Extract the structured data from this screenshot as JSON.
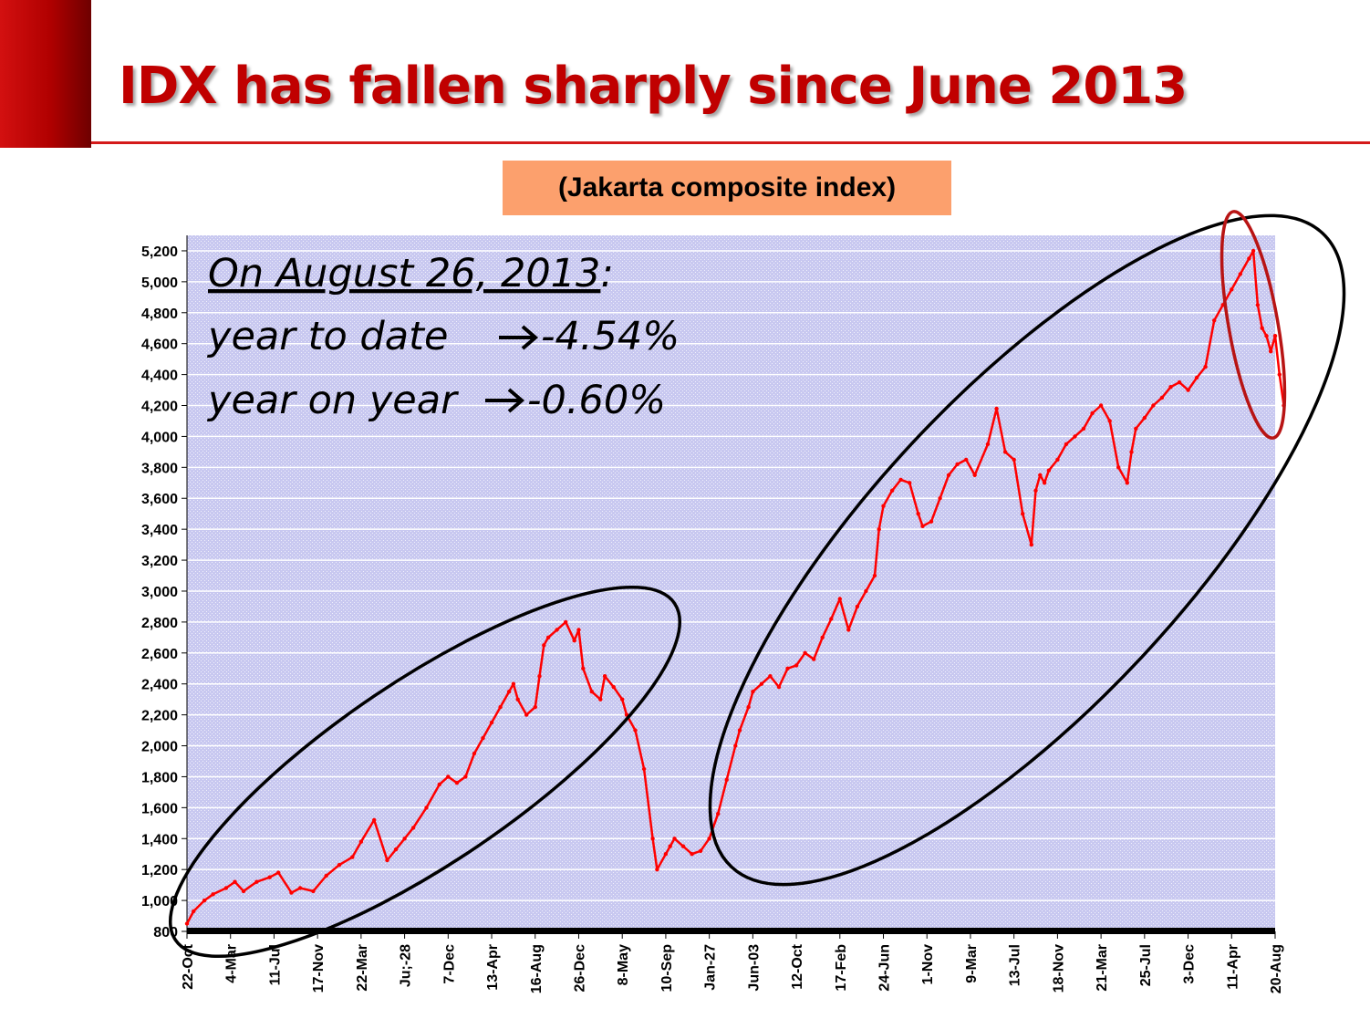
{
  "slide": {
    "title": "IDX has fallen sharply since June 2013",
    "subtitle": "(Jakarta composite index)",
    "accent_color": "#c00000"
  },
  "annotation": {
    "line1": "On August 26, 2013",
    "line1_suffix": ":",
    "line2_label": "year to date",
    "line2_value": "-4.54%",
    "line3_label": "year on year",
    "line3_value": "-0.60%",
    "arrow_icon": "right-arrow-icon"
  },
  "chart_data": {
    "type": "line",
    "title": "",
    "xlabel": "",
    "ylabel": "",
    "ylim": [
      800,
      5300
    ],
    "yticks": [
      800,
      1000,
      1200,
      1400,
      1600,
      1800,
      2000,
      2200,
      2400,
      2600,
      2800,
      3000,
      3200,
      3400,
      3600,
      3800,
      4000,
      4200,
      4400,
      4600,
      4800,
      5000,
      5200
    ],
    "ytick_labels": [
      "800",
      "1,000",
      "1,200",
      "1,400",
      "1,600",
      "1,800",
      "2,000",
      "2,200",
      "2,400",
      "2,600",
      "2,800",
      "3,000",
      "3,200",
      "3,400",
      "3,600",
      "3,800",
      "4,000",
      "4,200",
      "4,400",
      "4,600",
      "4,800",
      "5,000",
      "5,200"
    ],
    "xtick_labels": [
      "22-Oct",
      "4-Mar",
      "11-Jul",
      "17-Nov",
      "22-Mar",
      "Ju;-28",
      "7-Dec",
      "13-Apr",
      "16-Aug",
      "26-Dec",
      "8-May",
      "10-Sep",
      "Jan-27",
      "Jun-03",
      "12-Oct",
      "17-Feb",
      "24-Jun",
      "1-Nov",
      "9-Mar",
      "13-Jul",
      "18-Nov",
      "21-Mar",
      "25-Jul",
      "3-Dec",
      "11-Apr",
      "20-Aug"
    ],
    "grid": true,
    "background_color": "#c8c8f0",
    "line_color": "#ff0000",
    "series": [
      {
        "name": "",
        "x": [
          0.0,
          0.15,
          0.4,
          0.6,
          0.9,
          1.1,
          1.3,
          1.6,
          1.9,
          2.1,
          2.4,
          2.6,
          2.9,
          3.2,
          3.5,
          3.8,
          4.0,
          4.3,
          4.6,
          4.8,
          5.0,
          5.2,
          5.5,
          5.8,
          6.0,
          6.2,
          6.4,
          6.6,
          6.8,
          7.0,
          7.2,
          7.4,
          7.5,
          7.6,
          7.8,
          8.0,
          8.1,
          8.2,
          8.3,
          8.5,
          8.7,
          8.9,
          9.0,
          9.1,
          9.3,
          9.5,
          9.6,
          9.8,
          10.0,
          10.1,
          10.3,
          10.5,
          10.7,
          10.8,
          11.0,
          11.1,
          11.2,
          11.4,
          11.6,
          11.8,
          12.0,
          12.2,
          12.4,
          12.6,
          12.7,
          12.9,
          13.0,
          13.2,
          13.4,
          13.6,
          13.8,
          14.0,
          14.2,
          14.4,
          14.6,
          14.8,
          15.0,
          15.2,
          15.4,
          15.6,
          15.8,
          15.9,
          16.0,
          16.2,
          16.4,
          16.6,
          16.8,
          16.9,
          17.1,
          17.3,
          17.5,
          17.7,
          17.9,
          18.1,
          18.4,
          18.6,
          18.8,
          19.0,
          19.2,
          19.4,
          19.5,
          19.6,
          19.7,
          19.8,
          20.0,
          20.2,
          20.4,
          20.6,
          20.8,
          21.0,
          21.2,
          21.4,
          21.6,
          21.7,
          21.8,
          22.0,
          22.2,
          22.4,
          22.6,
          22.8,
          23.0,
          23.2,
          23.4,
          23.6,
          23.8,
          24.0,
          24.2,
          24.4,
          24.5,
          24.6,
          24.7,
          24.8,
          24.9,
          25.0,
          25.1,
          25.2
        ],
        "values": [
          850,
          930,
          1000,
          1040,
          1080,
          1120,
          1060,
          1120,
          1150,
          1180,
          1050,
          1080,
          1060,
          1160,
          1230,
          1280,
          1380,
          1520,
          1260,
          1330,
          1400,
          1470,
          1600,
          1750,
          1800,
          1760,
          1800,
          1950,
          2050,
          2150,
          2250,
          2350,
          2400,
          2300,
          2200,
          2250,
          2450,
          2650,
          2700,
          2750,
          2800,
          2680,
          2750,
          2500,
          2350,
          2300,
          2450,
          2380,
          2300,
          2200,
          2100,
          1850,
          1400,
          1200,
          1300,
          1350,
          1400,
          1350,
          1300,
          1320,
          1400,
          1560,
          1780,
          2000,
          2100,
          2250,
          2350,
          2400,
          2450,
          2380,
          2500,
          2520,
          2600,
          2560,
          2700,
          2820,
          2950,
          2750,
          2900,
          3000,
          3100,
          3400,
          3550,
          3650,
          3720,
          3700,
          3500,
          3420,
          3450,
          3600,
          3750,
          3820,
          3850,
          3750,
          3950,
          4180,
          3900,
          3850,
          3500,
          3300,
          3650,
          3750,
          3700,
          3780,
          3850,
          3950,
          4000,
          4050,
          4150,
          4200,
          4100,
          3800,
          3700,
          3900,
          4050,
          4120,
          4200,
          4250,
          4320,
          4350,
          4300,
          4380,
          4450,
          4750,
          4850,
          4950,
          5050,
          5150,
          5200,
          4850,
          4700,
          4650,
          4550,
          4650,
          4400,
          4200
        ]
      }
    ]
  }
}
